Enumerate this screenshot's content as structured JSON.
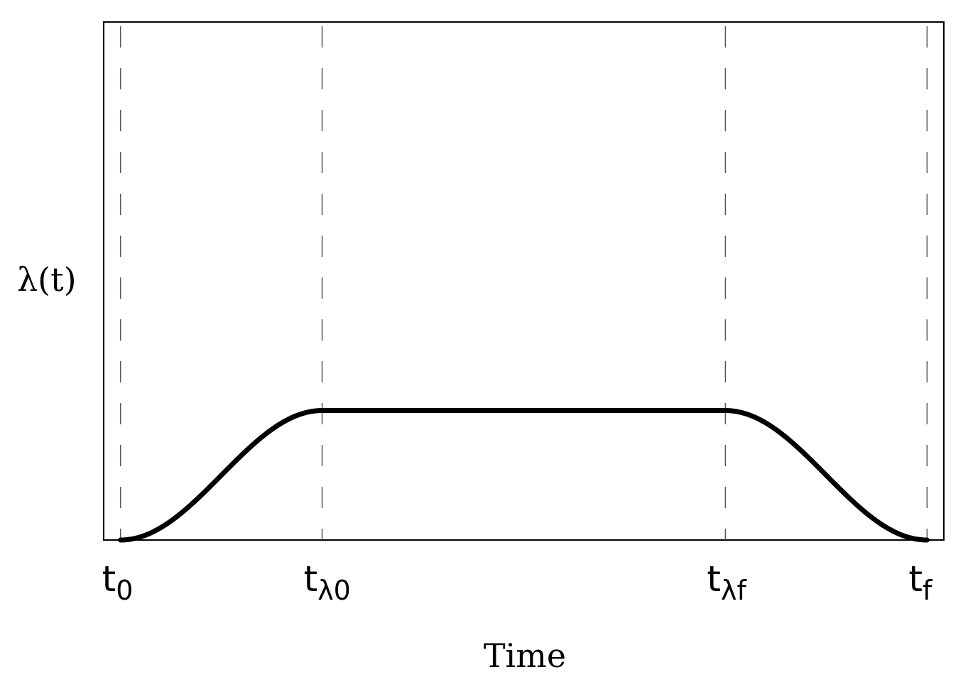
{
  "chart_data": {
    "type": "line",
    "xlabel": "Time",
    "ylabel": "λ(t)",
    "x_ticks": [
      {
        "x": 0.02,
        "main": "t",
        "sub": "0"
      },
      {
        "x": 0.26,
        "main": "t",
        "sub": "λ0"
      },
      {
        "x": 0.74,
        "main": "t",
        "sub": "λf"
      },
      {
        "x": 0.98,
        "main": "t",
        "sub": "f"
      }
    ],
    "xlim": [
      0,
      1
    ],
    "ylim": [
      0,
      1
    ],
    "grid": "vertical dashed lines at tick positions",
    "series": [
      {
        "x": [
          0.02,
          0.26,
          0.74,
          0.98
        ],
        "y": [
          0,
          0.25,
          0.25,
          0
        ],
        "shape": "smooth S-shaped ramp up, constant plateau, smooth ramp down"
      }
    ]
  }
}
